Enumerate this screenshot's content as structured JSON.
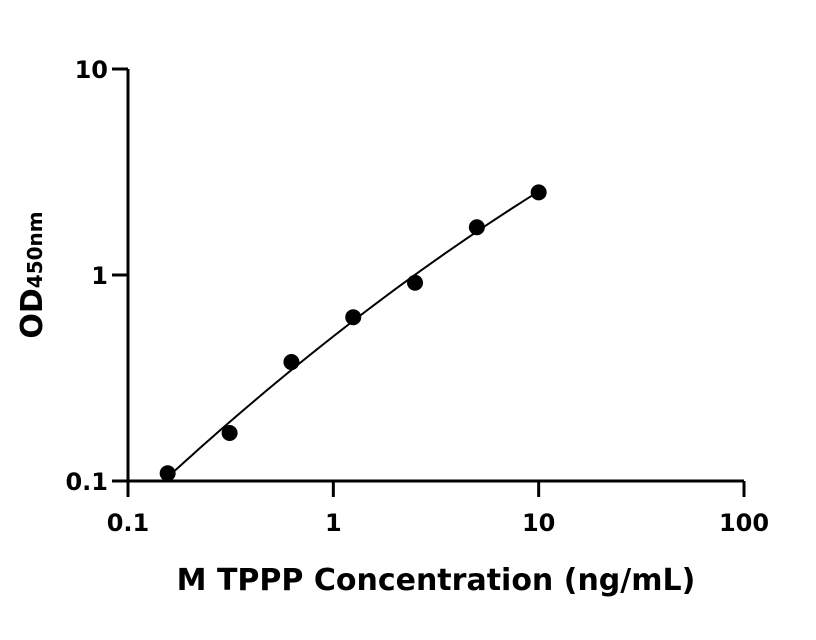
{
  "chart_data": {
    "type": "scatter",
    "xscale": "log",
    "yscale": "log",
    "xlim": [
      0.1,
      100
    ],
    "ylim": [
      0.1,
      10
    ],
    "x_ticks": [
      {
        "value": 0.1,
        "label": "0.1"
      },
      {
        "value": 1,
        "label": "1"
      },
      {
        "value": 10,
        "label": "10"
      },
      {
        "value": 100,
        "label": "100"
      }
    ],
    "y_ticks": [
      {
        "value": 0.1,
        "label": "0.1"
      },
      {
        "value": 1,
        "label": "1"
      },
      {
        "value": 10,
        "label": "10"
      }
    ],
    "xlabel": "M TPPP Concentration (ng/mL)",
    "ylabel_main": "OD",
    "ylabel_sub": "450nm",
    "grid": false,
    "legend": "none",
    "series": [
      {
        "x": [
          0.156,
          0.3125,
          0.625,
          1.25,
          2.5,
          5,
          10
        ],
        "y": [
          0.109,
          0.171,
          0.378,
          0.624,
          0.917,
          1.705,
          2.518
        ],
        "color": "#000000",
        "fit_line": true
      }
    ]
  }
}
